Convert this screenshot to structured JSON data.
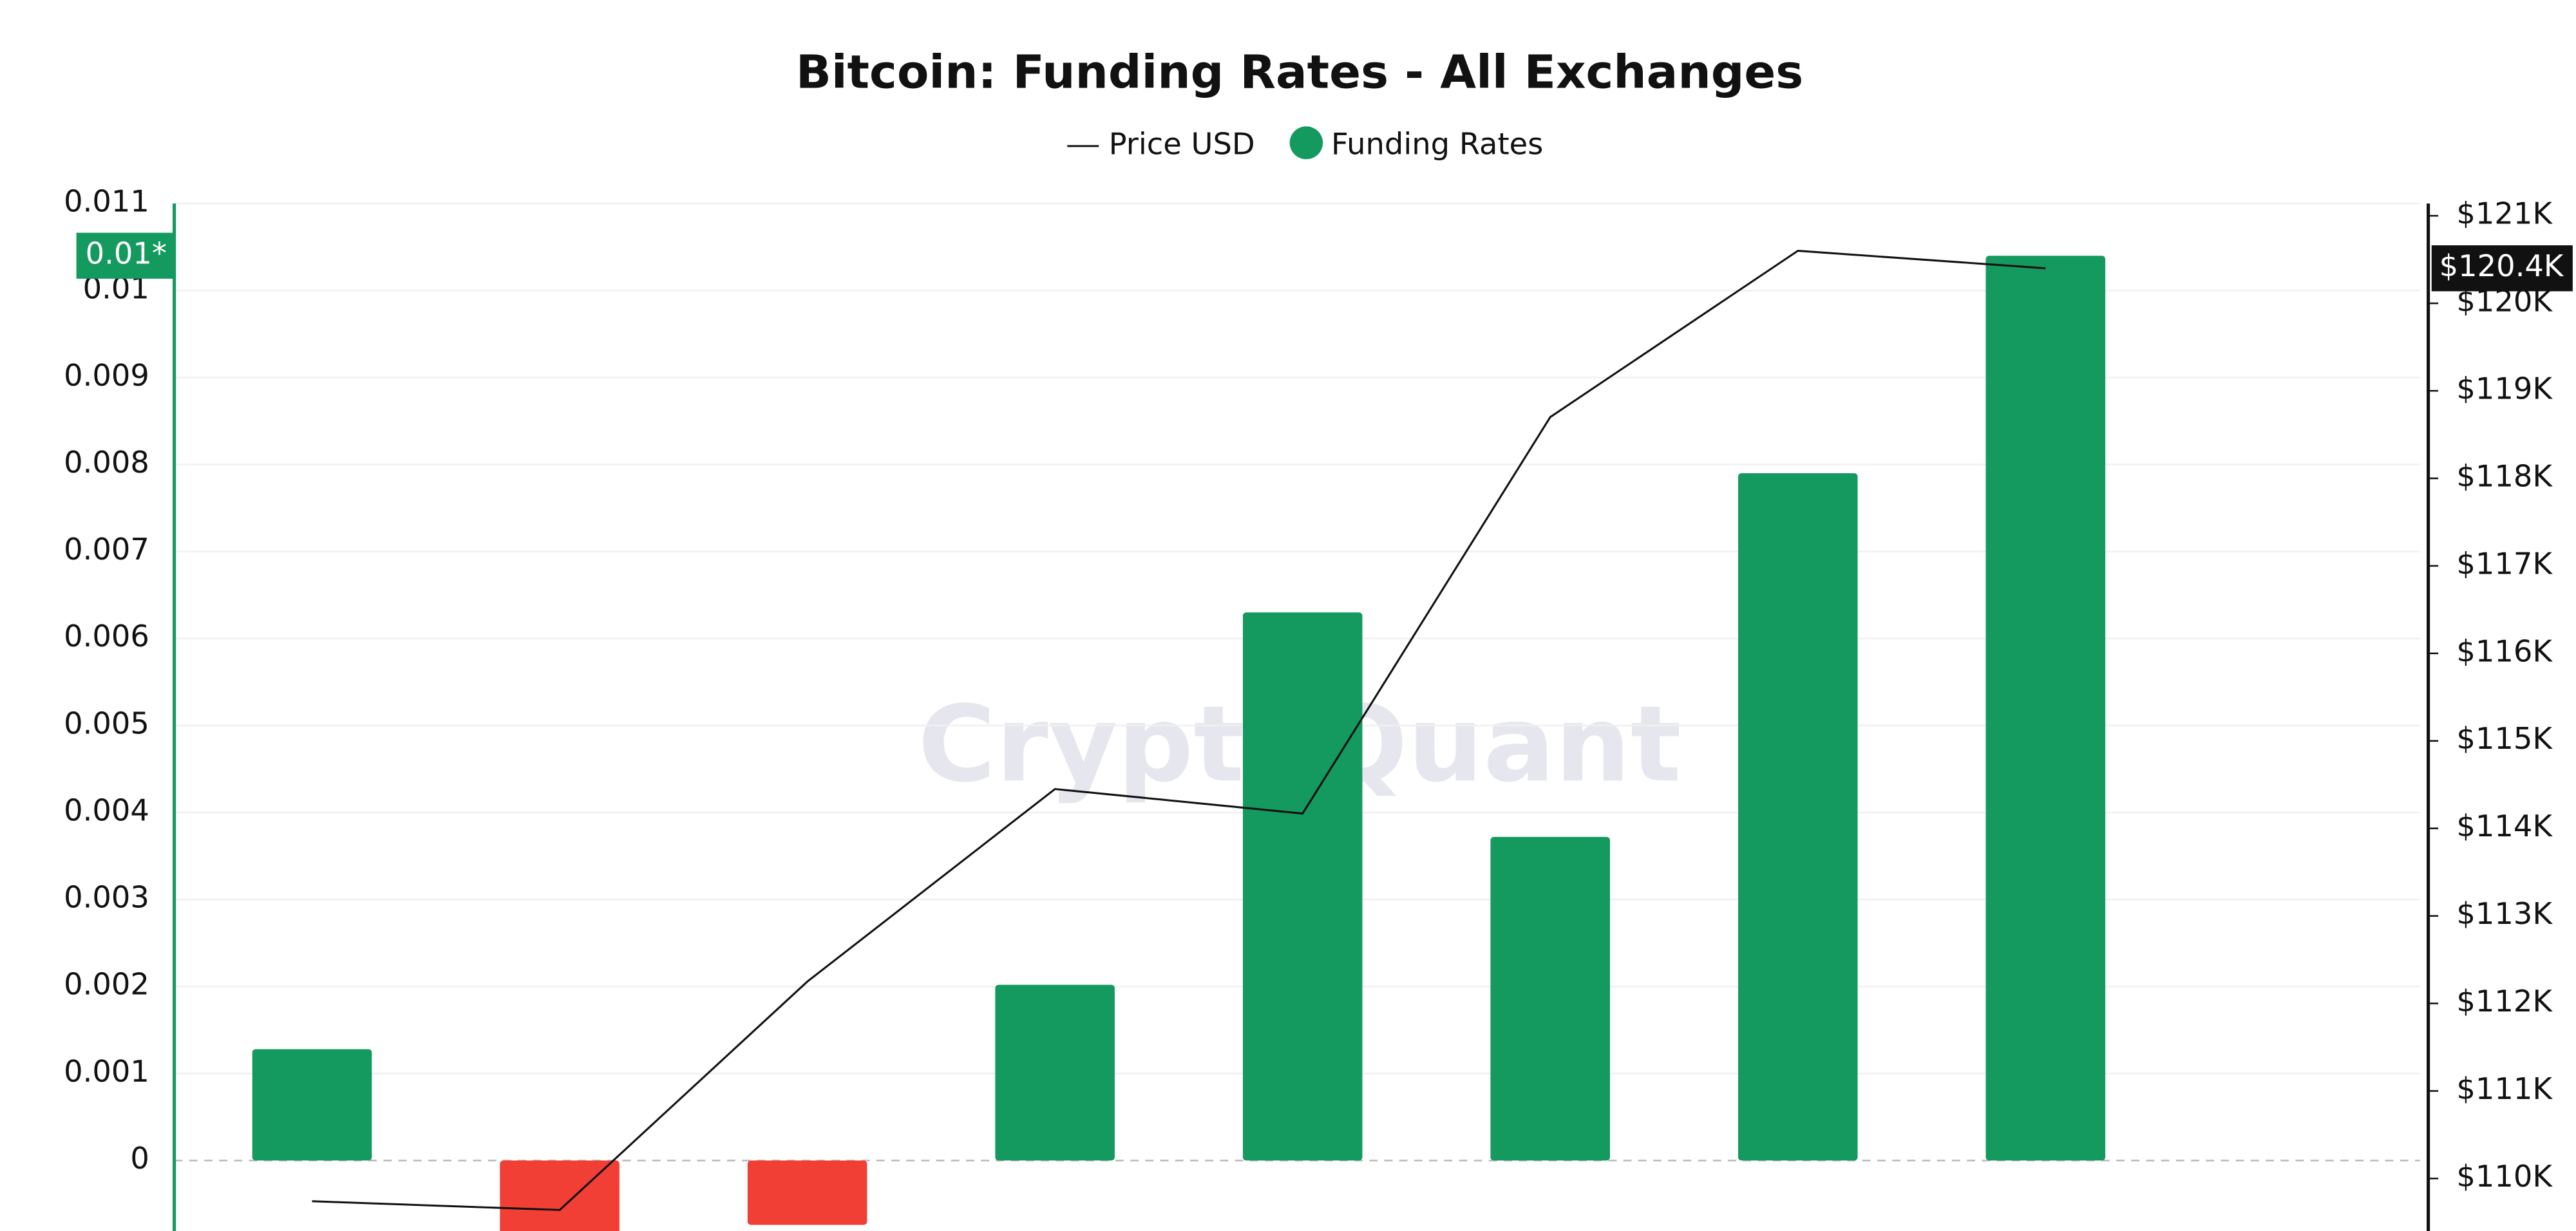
{
  "chart_data": {
    "type": "bar_line",
    "title": "Bitcoin: Funding Rates - All Exchanges",
    "watermark": "CryptoQuant",
    "categories": [
      null,
      null,
      null,
      null,
      null,
      null,
      null,
      null
    ],
    "series": [
      {
        "name": "Funding Rates",
        "type": "bar",
        "color": "#14995f",
        "negative_color": "#f23f35",
        "values": [
          0.00128,
          -0.001,
          -0.00074,
          0.00202,
          0.0063,
          0.00372,
          0.0079,
          0.0104
        ],
        "last_label": "0.01*"
      },
      {
        "name": "Price USD",
        "type": "line",
        "axis": "y2",
        "color": "#111111",
        "values": [
          109740,
          109640,
          112250,
          114450,
          114170,
          118700,
          120600,
          120400
        ],
        "last_label": "$120.4K"
      }
    ],
    "ylim": [
      -0.00081,
      0.011
    ],
    "yticks": [
      0,
      0.001,
      0.002,
      0.003,
      0.004,
      0.005,
      0.006,
      0.007,
      0.008,
      0.009,
      0.01,
      0.011
    ],
    "y2lim": [
      109400,
      121140
    ],
    "y2ticks": [
      {
        "value": 110000,
        "label": "$110K"
      },
      {
        "value": 111000,
        "label": "$111K"
      },
      {
        "value": 112000,
        "label": "$112K"
      },
      {
        "value": 113000,
        "label": "$113K"
      },
      {
        "value": 114000,
        "label": "$114K"
      },
      {
        "value": 115000,
        "label": "$115K"
      },
      {
        "value": 116000,
        "label": "$116K"
      },
      {
        "value": 117000,
        "label": "$117K"
      },
      {
        "value": 118000,
        "label": "$118K"
      },
      {
        "value": 119000,
        "label": "$119K"
      },
      {
        "value": 120000,
        "label": "$120K"
      },
      {
        "value": 121000,
        "label": "$121K"
      }
    ],
    "grid": true
  }
}
